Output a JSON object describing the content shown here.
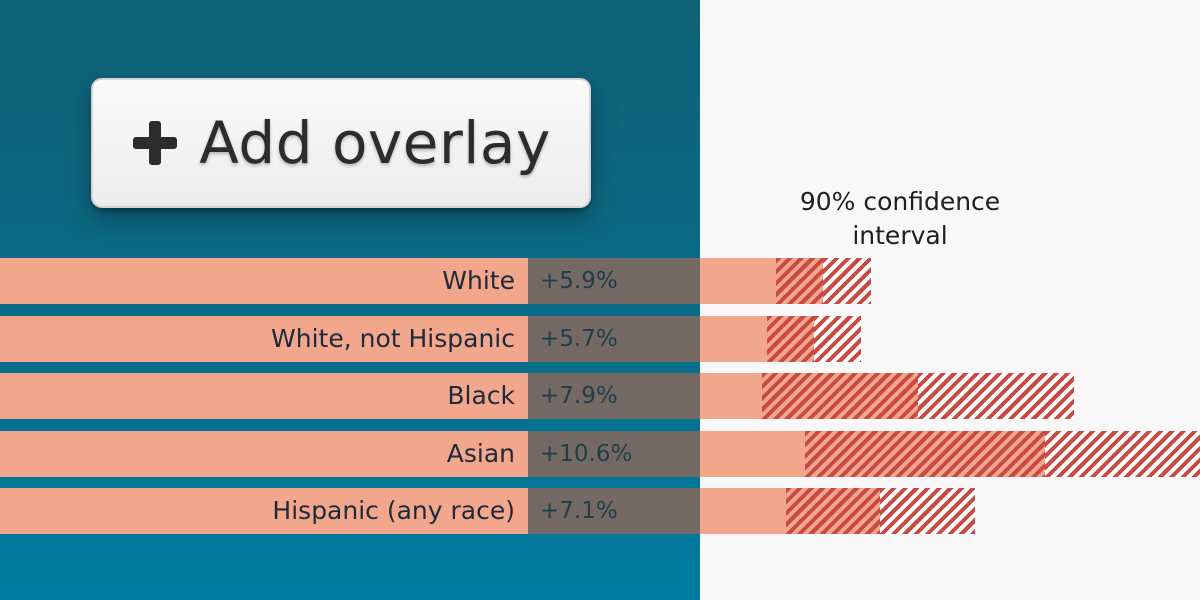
{
  "overlay_button": {
    "label": "Add overlay",
    "icon": "plus-icon"
  },
  "confidence_legend": {
    "line1": "90% confidence",
    "line2": "interval"
  },
  "colors": {
    "panel": "#0a6d8a",
    "bar": "#f2a68c",
    "hatch": "#c94a42"
  },
  "chart_data": {
    "type": "bar",
    "orientation": "horizontal",
    "categories": [
      "White",
      "White, not Hispanic",
      "Black",
      "Asian",
      "Hispanic (any race)"
    ],
    "values": [
      5.9,
      5.7,
      7.9,
      10.6,
      7.1
    ],
    "value_labels": [
      "+5.9%",
      "+5.7%",
      "+7.9%",
      "+10.6%",
      "+7.1%"
    ],
    "ci_low": [
      4.9,
      4.7,
      4.6,
      5.5,
      5.1
    ],
    "ci_high": [
      6.9,
      6.7,
      11.2,
      15.7,
      9.1
    ]
  }
}
